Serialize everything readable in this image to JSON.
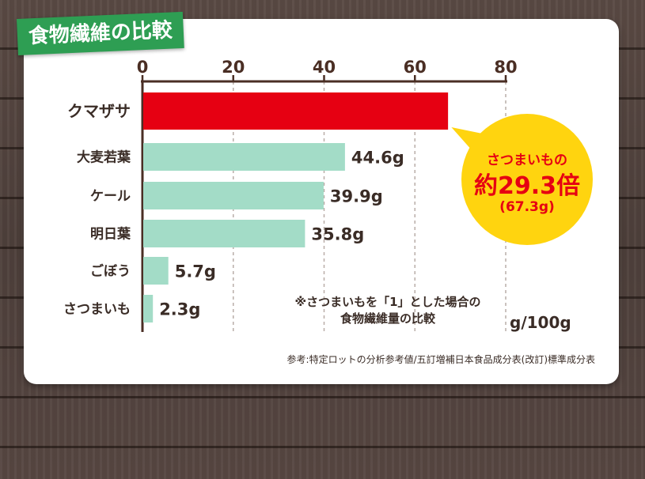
{
  "title": "食物繊維の比較",
  "chart_data": {
    "type": "bar",
    "orientation": "horizontal",
    "categories": [
      "クマザサ",
      "大麦若葉",
      "ケール",
      "明日葉",
      "ごぼう",
      "さつまいも"
    ],
    "values": [
      67.3,
      44.6,
      39.9,
      35.8,
      5.7,
      2.3
    ],
    "value_labels": [
      "",
      "44.6g",
      "39.9g",
      "35.8g",
      "5.7g",
      "2.3g"
    ],
    "xlim": [
      0,
      80
    ],
    "xticks": [
      0,
      20,
      40,
      60,
      80
    ],
    "xtick_labels": [
      "0",
      "20",
      "40",
      "60",
      "80"
    ],
    "axis_position": "top",
    "grid": true,
    "unit": "g/100g",
    "highlight": {
      "category": "クマザサ",
      "color": "#e60012"
    },
    "bar_color": "#a3dcc7"
  },
  "callout": {
    "line1": "さつまいもの",
    "line2": "約29.3倍",
    "line3": "(67.3g)"
  },
  "note_lines": [
    "※さつまいもを「1」とした場合の",
    "食物繊維量の比較"
  ],
  "source": "参考:特定ロットの分析参考値/五訂増補日本食品成分表(改訂)標準成分表",
  "colors": {
    "title_bg": "#2e9e53",
    "callout_bg": "#ffd40f",
    "callout_text": "#e60012",
    "text": "#3a2c26"
  }
}
